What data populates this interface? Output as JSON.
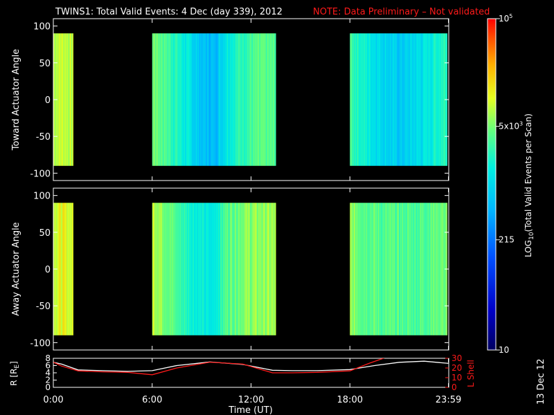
{
  "header": {
    "title": "TWINS1: Total Valid Events:  4 Dec (day 339), 2012",
    "note": "NOTE: Data Preliminary – Not validated",
    "note_color": "#ff1a1a"
  },
  "date_stamp": "13 Dec 12",
  "chart_data": [
    {
      "type": "heatmap",
      "panel": "top",
      "ylabel": "Toward Actuator Angle",
      "ylim": [
        -110,
        110
      ],
      "yticks": [
        "100",
        "50",
        "0",
        "-50",
        "-100"
      ],
      "ytick_values": [
        100,
        50,
        0,
        -50,
        -100
      ],
      "data_range_angle": [
        -90,
        90
      ],
      "xlim_hours": [
        0,
        24
      ],
      "coverage_intervals_hours": [
        [
          0.0,
          1.2
        ],
        [
          6.0,
          13.5
        ],
        [
          18.0,
          23.9
        ]
      ],
      "level_profile": [
        {
          "t": 0.0,
          "log": 3.93
        },
        {
          "t": 0.6,
          "log": 3.97
        },
        {
          "t": 1.2,
          "log": 3.88
        },
        {
          "t": 6.0,
          "log": 3.72
        },
        {
          "t": 6.6,
          "log": 3.6
        },
        {
          "t": 7.5,
          "log": 3.35
        },
        {
          "t": 9.0,
          "log": 2.8
        },
        {
          "t": 9.8,
          "log": 2.75
        },
        {
          "t": 10.5,
          "log": 3.2
        },
        {
          "t": 11.5,
          "log": 3.45
        },
        {
          "t": 12.5,
          "log": 3.55
        },
        {
          "t": 13.5,
          "log": 3.55
        },
        {
          "t": 18.0,
          "log": 3.5
        },
        {
          "t": 19.5,
          "log": 3.1
        },
        {
          "t": 21.0,
          "log": 2.85
        },
        {
          "t": 22.5,
          "log": 3.1
        },
        {
          "t": 23.9,
          "log": 3.45
        }
      ]
    },
    {
      "type": "heatmap",
      "panel": "middle",
      "ylabel": "Away Actuator Angle",
      "ylim": [
        -110,
        110
      ],
      "yticks": [
        "100",
        "50",
        "0",
        "-50",
        "-100"
      ],
      "ytick_values": [
        100,
        50,
        0,
        -50,
        -100
      ],
      "data_range_angle": [
        -90,
        90
      ],
      "xlim_hours": [
        0,
        24
      ],
      "coverage_intervals_hours": [
        [
          0.0,
          1.2
        ],
        [
          6.0,
          13.5
        ],
        [
          18.0,
          23.9
        ]
      ],
      "level_profile": [
        {
          "t": 0.0,
          "log": 4.02
        },
        {
          "t": 0.6,
          "log": 4.06
        },
        {
          "t": 1.2,
          "log": 3.97
        },
        {
          "t": 6.0,
          "log": 3.97
        },
        {
          "t": 6.8,
          "log": 3.75
        },
        {
          "t": 7.5,
          "log": 3.5
        },
        {
          "t": 8.8,
          "log": 3.2
        },
        {
          "t": 9.6,
          "log": 3.1
        },
        {
          "t": 10.5,
          "log": 3.6
        },
        {
          "t": 11.5,
          "log": 3.75
        },
        {
          "t": 13.5,
          "log": 3.8
        },
        {
          "t": 18.0,
          "log": 3.75
        },
        {
          "t": 20.0,
          "log": 3.55
        },
        {
          "t": 22.0,
          "log": 3.55
        },
        {
          "t": 23.9,
          "log": 3.7
        }
      ]
    },
    {
      "type": "line",
      "panel": "bottom",
      "ylabel": "R [R",
      "ylabel_sub": "E",
      "ylabel_close": "]",
      "ylim": [
        0,
        8
      ],
      "yticks": [
        "8",
        "6",
        "4",
        "2",
        "0"
      ],
      "ytick_values": [
        8,
        6,
        4,
        2,
        0
      ],
      "y2label": "L Shell",
      "y2lim": [
        0,
        30
      ],
      "y2ticks": [
        "30",
        "20",
        "10",
        "0"
      ],
      "y2tick_values": [
        30,
        20,
        10,
        0
      ],
      "xlabel": "Time (UT)",
      "xticks": [
        "0:00",
        "6:00",
        "12:00",
        "18:00",
        "23:59"
      ],
      "xtick_values": [
        0,
        6,
        12,
        18,
        23.98
      ],
      "series": [
        {
          "color": "#ffffff",
          "axis": "R",
          "x": [
            0,
            0.5,
            1.5,
            3,
            4.5,
            6,
            7.5,
            9.5,
            11.5,
            13.3,
            14.5,
            16,
            18,
            19.5,
            21,
            22.5,
            24
          ],
          "y": [
            6.9,
            6.4,
            4.8,
            4.6,
            4.4,
            4.6,
            6.0,
            7.0,
            6.3,
            4.7,
            4.6,
            4.6,
            4.9,
            6.0,
            6.9,
            7.2,
            6.6
          ]
        },
        {
          "color": "#ff1a1a",
          "axis": "L",
          "x": [
            0,
            0.5,
            1.5,
            3,
            4.5,
            6,
            7.5,
            9.5,
            11.5,
            13.3,
            14.5,
            16,
            18,
            19.2,
            20.2
          ],
          "y": [
            26,
            22,
            17,
            16,
            15.5,
            13,
            20,
            26,
            24,
            15,
            15,
            15.5,
            17,
            25,
            31
          ]
        }
      ]
    },
    {
      "type": "colorbar",
      "label_main": "LOG",
      "label_sub": "10",
      "label_rest": "(Total Valid Events per Scan)",
      "range_log": [
        1,
        5
      ],
      "ticks": [
        {
          "text": "10",
          "exp": "",
          "log": 1
        },
        {
          "text": "215",
          "exp": "",
          "log": 2.33
        },
        {
          "text": "5x10",
          "exp": "3",
          "log": 3.7
        },
        {
          "text": "10",
          "exp": "5",
          "log": 5
        }
      ]
    }
  ]
}
